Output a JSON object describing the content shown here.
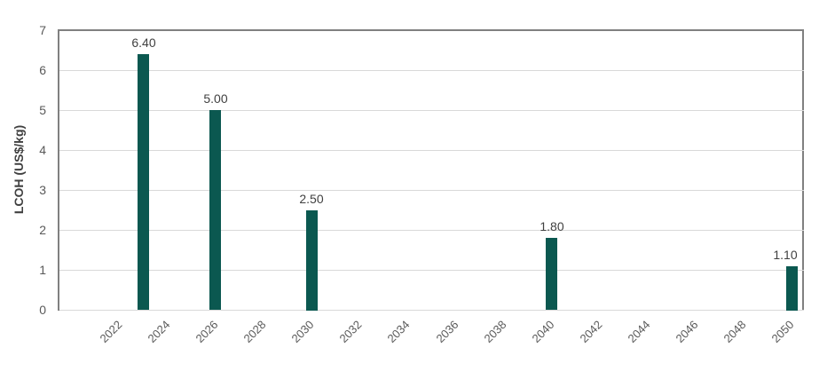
{
  "chart_data": {
    "type": "bar",
    "title": "",
    "xlabel": "",
    "ylabel": "LCOH (US$/kg)",
    "ylim": [
      0,
      7
    ],
    "y_tick_interval": 1,
    "y_tick_labels": [
      "0",
      "1",
      "2",
      "3",
      "4",
      "5",
      "6",
      "7"
    ],
    "x_first_category": 2020,
    "x_last_category": 2050,
    "x_tick_labels": [
      "2022",
      "2024",
      "2026",
      "2028",
      "2030",
      "2032",
      "2034",
      "2036",
      "2038",
      "2040",
      "2042",
      "2044",
      "2046",
      "2048",
      "2050"
    ],
    "grid": true,
    "legend": false,
    "series": [
      {
        "name": "LCOH",
        "color": "#0B5850",
        "points": [
          {
            "x": 2023,
            "y": 6.4,
            "label": "6.40"
          },
          {
            "x": 2026,
            "y": 5.0,
            "label": "5.00"
          },
          {
            "x": 2030,
            "y": 2.5,
            "label": "2.50"
          },
          {
            "x": 2040,
            "y": 1.8,
            "label": "1.80"
          },
          {
            "x": 2050,
            "y": 1.1,
            "label": "1.10"
          }
        ]
      }
    ]
  },
  "style": {
    "bar_color": "#0B5850",
    "grid_color": "#D9D9D9",
    "axis_border_color": "#808080",
    "baseline_color": "#D9D9D9",
    "tick_label_color": "#595959",
    "data_label_color": "#404040",
    "axis_title_color": "#404040",
    "background_color": "#FFFFFF"
  }
}
